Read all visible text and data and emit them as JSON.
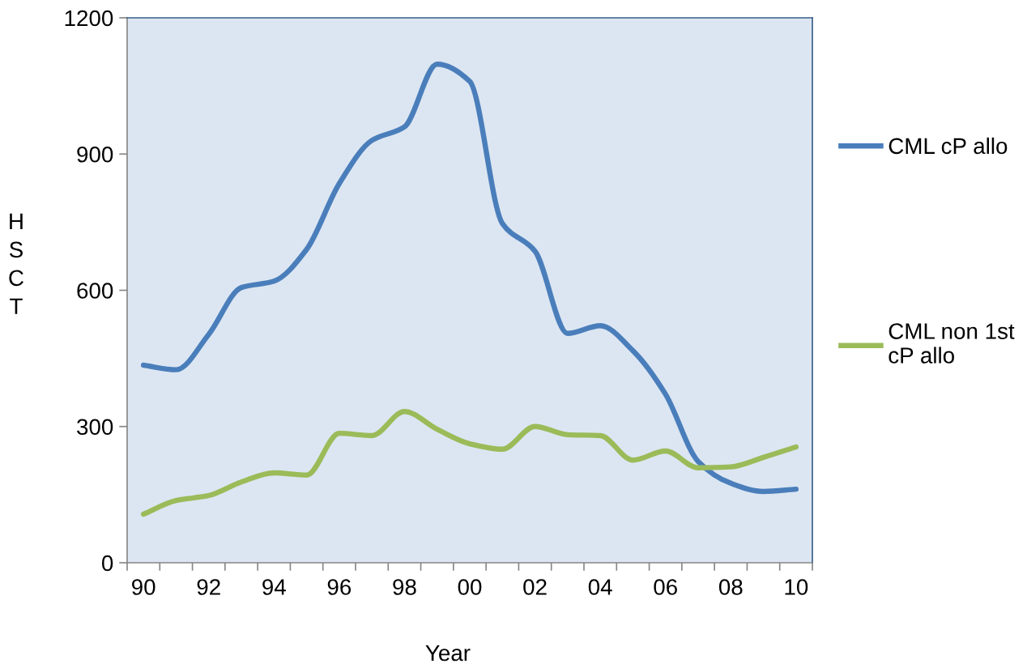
{
  "chart_data": {
    "type": "line",
    "categories": [
      "90",
      null,
      "92",
      null,
      "94",
      null,
      "96",
      null,
      "98",
      null,
      "00",
      null,
      "02",
      null,
      "04",
      null,
      "06",
      null,
      "08",
      null,
      "10"
    ],
    "xlabel": "Year",
    "ylabel": "HSCT",
    "ylim": [
      0,
      1200
    ],
    "yticks": [
      0,
      300,
      600,
      900,
      1200
    ],
    "series": [
      {
        "name": "CML cP allo",
        "color": "#4a7ebb",
        "values": [
          435,
          425,
          503,
          606,
          620,
          690,
          835,
          930,
          960,
          1098,
          1060,
          747,
          686,
          505,
          522,
          467,
          371,
          223,
          175,
          157,
          162
        ]
      },
      {
        "name": "CML non 1st cP allo",
        "color": "#9bbb59",
        "values": [
          107,
          137,
          148,
          178,
          198,
          193,
          285,
          280,
          333,
          294,
          262,
          250,
          300,
          282,
          280,
          226,
          246,
          209,
          211,
          232,
          255
        ]
      }
    ],
    "legend": "right",
    "grid": false,
    "line_style": "solid"
  }
}
